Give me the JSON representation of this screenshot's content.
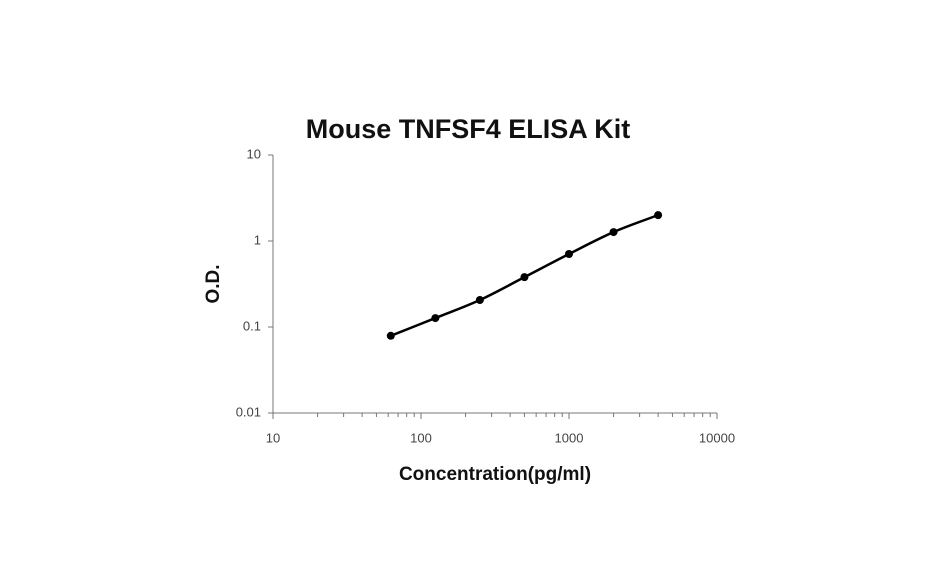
{
  "chart_data": {
    "type": "line",
    "title": "Mouse TNFSF4 ELISA Kit",
    "x_label": "Concentration(pg/ml)",
    "y_label": "O.D.",
    "x": [
      62.5,
      125,
      250,
      500,
      1000,
      2000,
      4000
    ],
    "values": [
      0.079,
      0.127,
      0.206,
      0.38,
      0.706,
      1.27,
      2.0
    ],
    "color": "#000000",
    "x_log": true,
    "y_log": true,
    "xlim": [
      10,
      10000
    ],
    "xticks": [
      10,
      100,
      1000,
      10000
    ],
    "ylim": [
      0.01,
      10
    ],
    "yticks": [
      0.01,
      0.1,
      1,
      10
    ],
    "grid": false,
    "markers": true
  }
}
